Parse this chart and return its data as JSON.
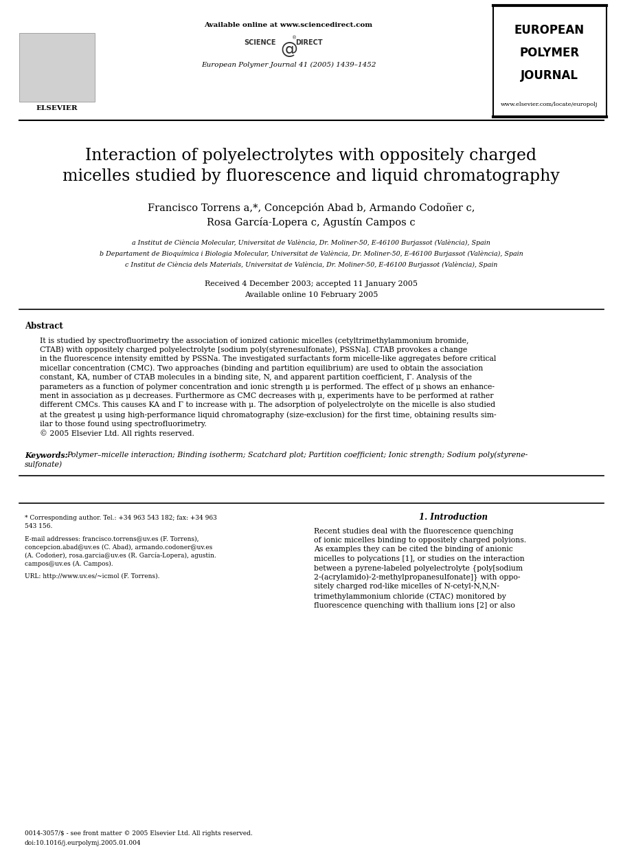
{
  "page_bg": "#ffffff",
  "header_available": "Available online at www.sciencedirect.com",
  "header_journal_line": "European Polymer Journal 41 (2005) 1439–1452",
  "journal_name_line1": "EUROPEAN",
  "journal_name_line2": "POLYMER",
  "journal_name_line3": "JOURNAL",
  "website": "www.elsevier.com/locate/europolj",
  "title": "Interaction of polyelectrolytes with oppositely charged\nmicelles studied by fluorescence and liquid chromatography",
  "authors_line1": "Francisco Torrens a,*, Concepción Abad b, Armando Codoñer c,",
  "authors_line2": "Rosa García-Lopera c, Agustín Campos c",
  "affil_a": "a Institut de Ciència Molecular, Universitat de València, Dr. Moliner-50, E-46100 Burjassot (València), Spain",
  "affil_b": "b Departament de Bioquímica i Biologia Molecular, Universitat de València, Dr. Moliner-50, E-46100 Burjassot (València), Spain",
  "affil_c": "c Institut de Ciència dels Materials, Universitat de València, Dr. Moliner-50, E-46100 Burjassot (València), Spain",
  "received": "Received 4 December 2003; accepted 11 January 2005",
  "available_online": "Available online 10 February 2005",
  "abstract_title": "Abstract",
  "abstract_text1": "It is studied by spectrofluorimetry the association of ionized cationic micelles (cetyltrimethylammonium bromide,",
  "abstract_text2": "CTAB) with oppositely charged polyelectrolyte [sodium poly(styrenesulfonate), PSSNa]. CTAB provokes a change",
  "abstract_text3": "in the fluorescence intensity emitted by PSSNa. The investigated surfactants form micelle-like aggregates before critical",
  "abstract_text4": "micellar concentration (CMC). Two approaches (binding and partition equilibrium) are used to obtain the association",
  "abstract_text5": "constant, KA, number of CTAB molecules in a binding site, N, and apparent partition coefficient, Γ. Analysis of the",
  "abstract_text6": "parameters as a function of polymer concentration and ionic strength μ is performed. The effect of μ shows an enhance-",
  "abstract_text7": "ment in association as μ decreases. Furthermore as CMC decreases with μ, experiments have to be performed at rather",
  "abstract_text8": "different CMCs. This causes KA and Γ to increase with μ. The adsorption of polyelectrolyte on the micelle is also studied",
  "abstract_text9": "at the greatest μ using high-performance liquid chromatography (size-exclusion) for the first time, obtaining results sim-",
  "abstract_text10": "ilar to those found using spectrofluorimetry.",
  "abstract_copyright": "© 2005 Elsevier Ltd. All rights reserved.",
  "keywords_label": "Keywords:",
  "keywords_text1": "Polymer–micelle interaction; Binding isotherm; Scatchard plot; Partition coefficient; Ionic strength; Sodium poly(styrene-",
  "keywords_text2": "sulfonate)",
  "section1_title": "1. Introduction",
  "intro_line1": "Recent studies deal with the fluorescence quenching",
  "intro_line2": "of ionic micelles binding to oppositely charged polyions.",
  "intro_line3": "As examples they can be cited the binding of anionic",
  "intro_line4": "micelles to polycations [1], or studies on the interaction",
  "intro_line5": "between a pyrene-labeled polyelectrolyte {poly[sodium",
  "intro_line6": "2-(acrylamido)-2-methylpropanesulfonate]} with oppo-",
  "intro_line7": "sitely charged rod-like micelles of N-cetyl-N,N,N-",
  "intro_line8": "trimethylammonium chloride (CTAC) monitored by",
  "intro_line9": "fluorescence quenching with thallium ions [2] or also",
  "fn_star1": "* Corresponding author. Tel.: +34 963 543 182; fax: +34 963",
  "fn_star2": "543 156.",
  "fn_email1": "E-mail addresses: francisco.torrens@uv.es (F. Torrens),",
  "fn_email2": "concepcion.abad@uv.es (C. Abad), armando.codoner@uv.es",
  "fn_email3": "(A. Codoñer), rosa.garcia@uv.es (R. García-Lopera), agustin.",
  "fn_email4": "campos@uv.es (A. Campos).",
  "fn_url": "URL: http://www.uv.es/~icmol (F. Torrens).",
  "footer1": "0014-3057/$ - see front matter © 2005 Elsevier Ltd. All rights reserved.",
  "footer2": "doi:10.1016/j.eurpolymj.2005.01.004"
}
